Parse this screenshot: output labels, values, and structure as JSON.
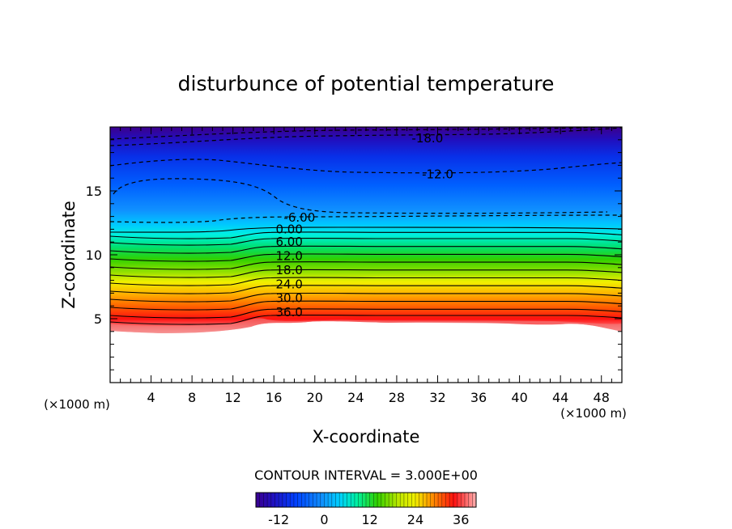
{
  "chart_data": {
    "type": "heatmap",
    "title": "disturbunce of potential temperature",
    "xlabel": "X-coordinate",
    "ylabel": "Z-coordinate",
    "x_unit_left": "(×1000 m)",
    "x_unit_right": "(×1000 m)",
    "xlim": [
      0,
      50
    ],
    "ylim": [
      0,
      20
    ],
    "x_ticks": [
      "4",
      "8",
      "12",
      "16",
      "20",
      "24",
      "28",
      "32",
      "36",
      "40",
      "44",
      "48"
    ],
    "y_ticks": [
      "5",
      "10",
      "15"
    ],
    "contour_interval_text": "CONTOUR INTERVAL = 3.000E+00",
    "contour_interval": 3.0,
    "value_range": [
      -18,
      40
    ],
    "contour_labels": [
      {
        "text": "-18.0",
        "x": 31.0,
        "z": 19.1
      },
      {
        "text": "-12.0",
        "x": 32.0,
        "z": 16.3
      },
      {
        "text": "-6.00",
        "x": 18.5,
        "z": 12.9
      },
      {
        "text": "0.00",
        "x": 17.5,
        "z": 12.0
      },
      {
        "text": "6.00",
        "x": 17.5,
        "z": 11.0
      },
      {
        "text": "12.0",
        "x": 17.5,
        "z": 9.9
      },
      {
        "text": "18.0",
        "x": 17.5,
        "z": 8.8
      },
      {
        "text": "24.0",
        "x": 17.5,
        "z": 7.7
      },
      {
        "text": "30.0",
        "x": 17.5,
        "z": 6.6
      },
      {
        "text": "36.0",
        "x": 17.5,
        "z": 5.5
      }
    ],
    "colorbar": {
      "ticks": [
        "-12",
        "0",
        "12",
        "24",
        "36"
      ],
      "tick_values": [
        -12,
        0,
        12,
        24,
        36
      ],
      "min": -18,
      "max": 40
    },
    "colors": {
      "low": "#3a0090",
      "mid_cold": "#0050ff",
      "cyan": "#00e0ff",
      "green": "#30d000",
      "yellow": "#f0f000",
      "orange": "#ff8000",
      "red": "#ff1010",
      "high": "#ffb0b0"
    }
  }
}
